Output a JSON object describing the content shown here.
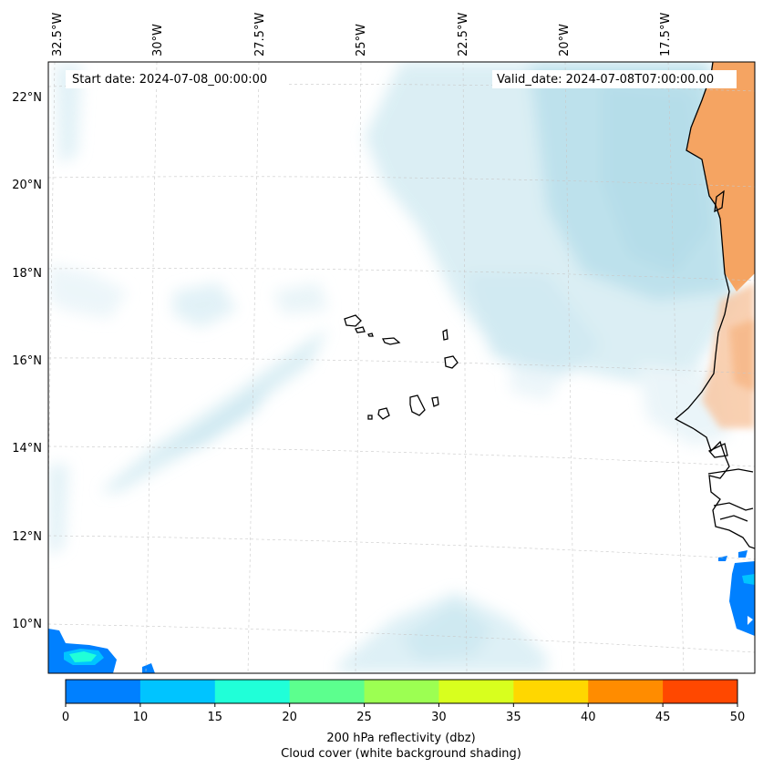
{
  "map": {
    "lon_labels": [
      "32.5°W",
      "30°W",
      "27.5°W",
      "25°W",
      "22.5°W",
      "20°W",
      "17.5°W"
    ],
    "lat_labels": [
      "22°N",
      "20°N",
      "18°N",
      "16°N",
      "14°N",
      "12°N",
      "10°N"
    ],
    "start_date": "Start date: 2024-07-08_00:00:00",
    "valid_date": "Valid_date: 2024-07-08T07:00:00.00",
    "colors": {
      "cloud": "#a8d8e6",
      "land_heat": "#f5a462",
      "refl_0_10": "#0080ff",
      "refl_10_15": "#00c4ff",
      "refl_15_20": "#20ffd8"
    }
  },
  "colorbar": {
    "ticks": [
      "0",
      "10",
      "15",
      "20",
      "25",
      "30",
      "35",
      "40",
      "45",
      "50"
    ],
    "colors": [
      "#0080ff",
      "#00c4ff",
      "#20ffd8",
      "#5cff8e",
      "#9cff52",
      "#d8ff1e",
      "#ffd700",
      "#ff8c00",
      "#ff4800"
    ],
    "label_line1": "200 hPa reflectivity (dbz)",
    "label_line2": "Cloud cover (white background shading)"
  }
}
